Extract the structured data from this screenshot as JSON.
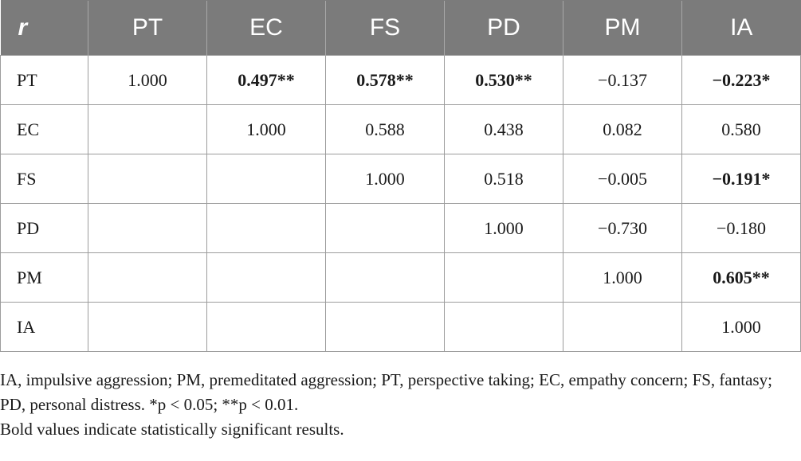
{
  "table": {
    "corner": "r",
    "headers": [
      "PT",
      "EC",
      "FS",
      "PD",
      "PM",
      "IA"
    ],
    "rows": [
      {
        "label": "PT",
        "cells": [
          {
            "v": "1.000",
            "bold": false
          },
          {
            "v": "0.497**",
            "bold": true
          },
          {
            "v": "0.578**",
            "bold": true
          },
          {
            "v": "0.530**",
            "bold": true
          },
          {
            "v": "−0.137",
            "bold": false
          },
          {
            "v": "−0.223*",
            "bold": true
          }
        ]
      },
      {
        "label": "EC",
        "cells": [
          {
            "v": "",
            "bold": false
          },
          {
            "v": "1.000",
            "bold": false
          },
          {
            "v": "0.588",
            "bold": false
          },
          {
            "v": "0.438",
            "bold": false
          },
          {
            "v": "0.082",
            "bold": false
          },
          {
            "v": "0.580",
            "bold": false
          }
        ]
      },
      {
        "label": "FS",
        "cells": [
          {
            "v": "",
            "bold": false
          },
          {
            "v": "",
            "bold": false
          },
          {
            "v": "1.000",
            "bold": false
          },
          {
            "v": "0.518",
            "bold": false
          },
          {
            "v": "−0.005",
            "bold": false
          },
          {
            "v": "−0.191*",
            "bold": true
          }
        ]
      },
      {
        "label": "PD",
        "cells": [
          {
            "v": "",
            "bold": false
          },
          {
            "v": "",
            "bold": false
          },
          {
            "v": "",
            "bold": false
          },
          {
            "v": "1.000",
            "bold": false
          },
          {
            "v": "−0.730",
            "bold": false
          },
          {
            "v": "−0.180",
            "bold": false
          }
        ]
      },
      {
        "label": "PM",
        "cells": [
          {
            "v": "",
            "bold": false
          },
          {
            "v": "",
            "bold": false
          },
          {
            "v": "",
            "bold": false
          },
          {
            "v": "",
            "bold": false
          },
          {
            "v": "1.000",
            "bold": false
          },
          {
            "v": "0.605**",
            "bold": true
          }
        ]
      },
      {
        "label": "IA",
        "cells": [
          {
            "v": "",
            "bold": false
          },
          {
            "v": "",
            "bold": false
          },
          {
            "v": "",
            "bold": false
          },
          {
            "v": "",
            "bold": false
          },
          {
            "v": "",
            "bold": false
          },
          {
            "v": "1.000",
            "bold": false
          }
        ]
      }
    ]
  },
  "notes": {
    "abbreviations": "IA, impulsive aggression; PM, premeditated aggression; PT, perspective taking; EC, empathy concern; FS, fantasy; PD, personal distress. *p < 0.05; **p < 0.01.",
    "bold_note": "Bold values indicate statistically significant results."
  }
}
